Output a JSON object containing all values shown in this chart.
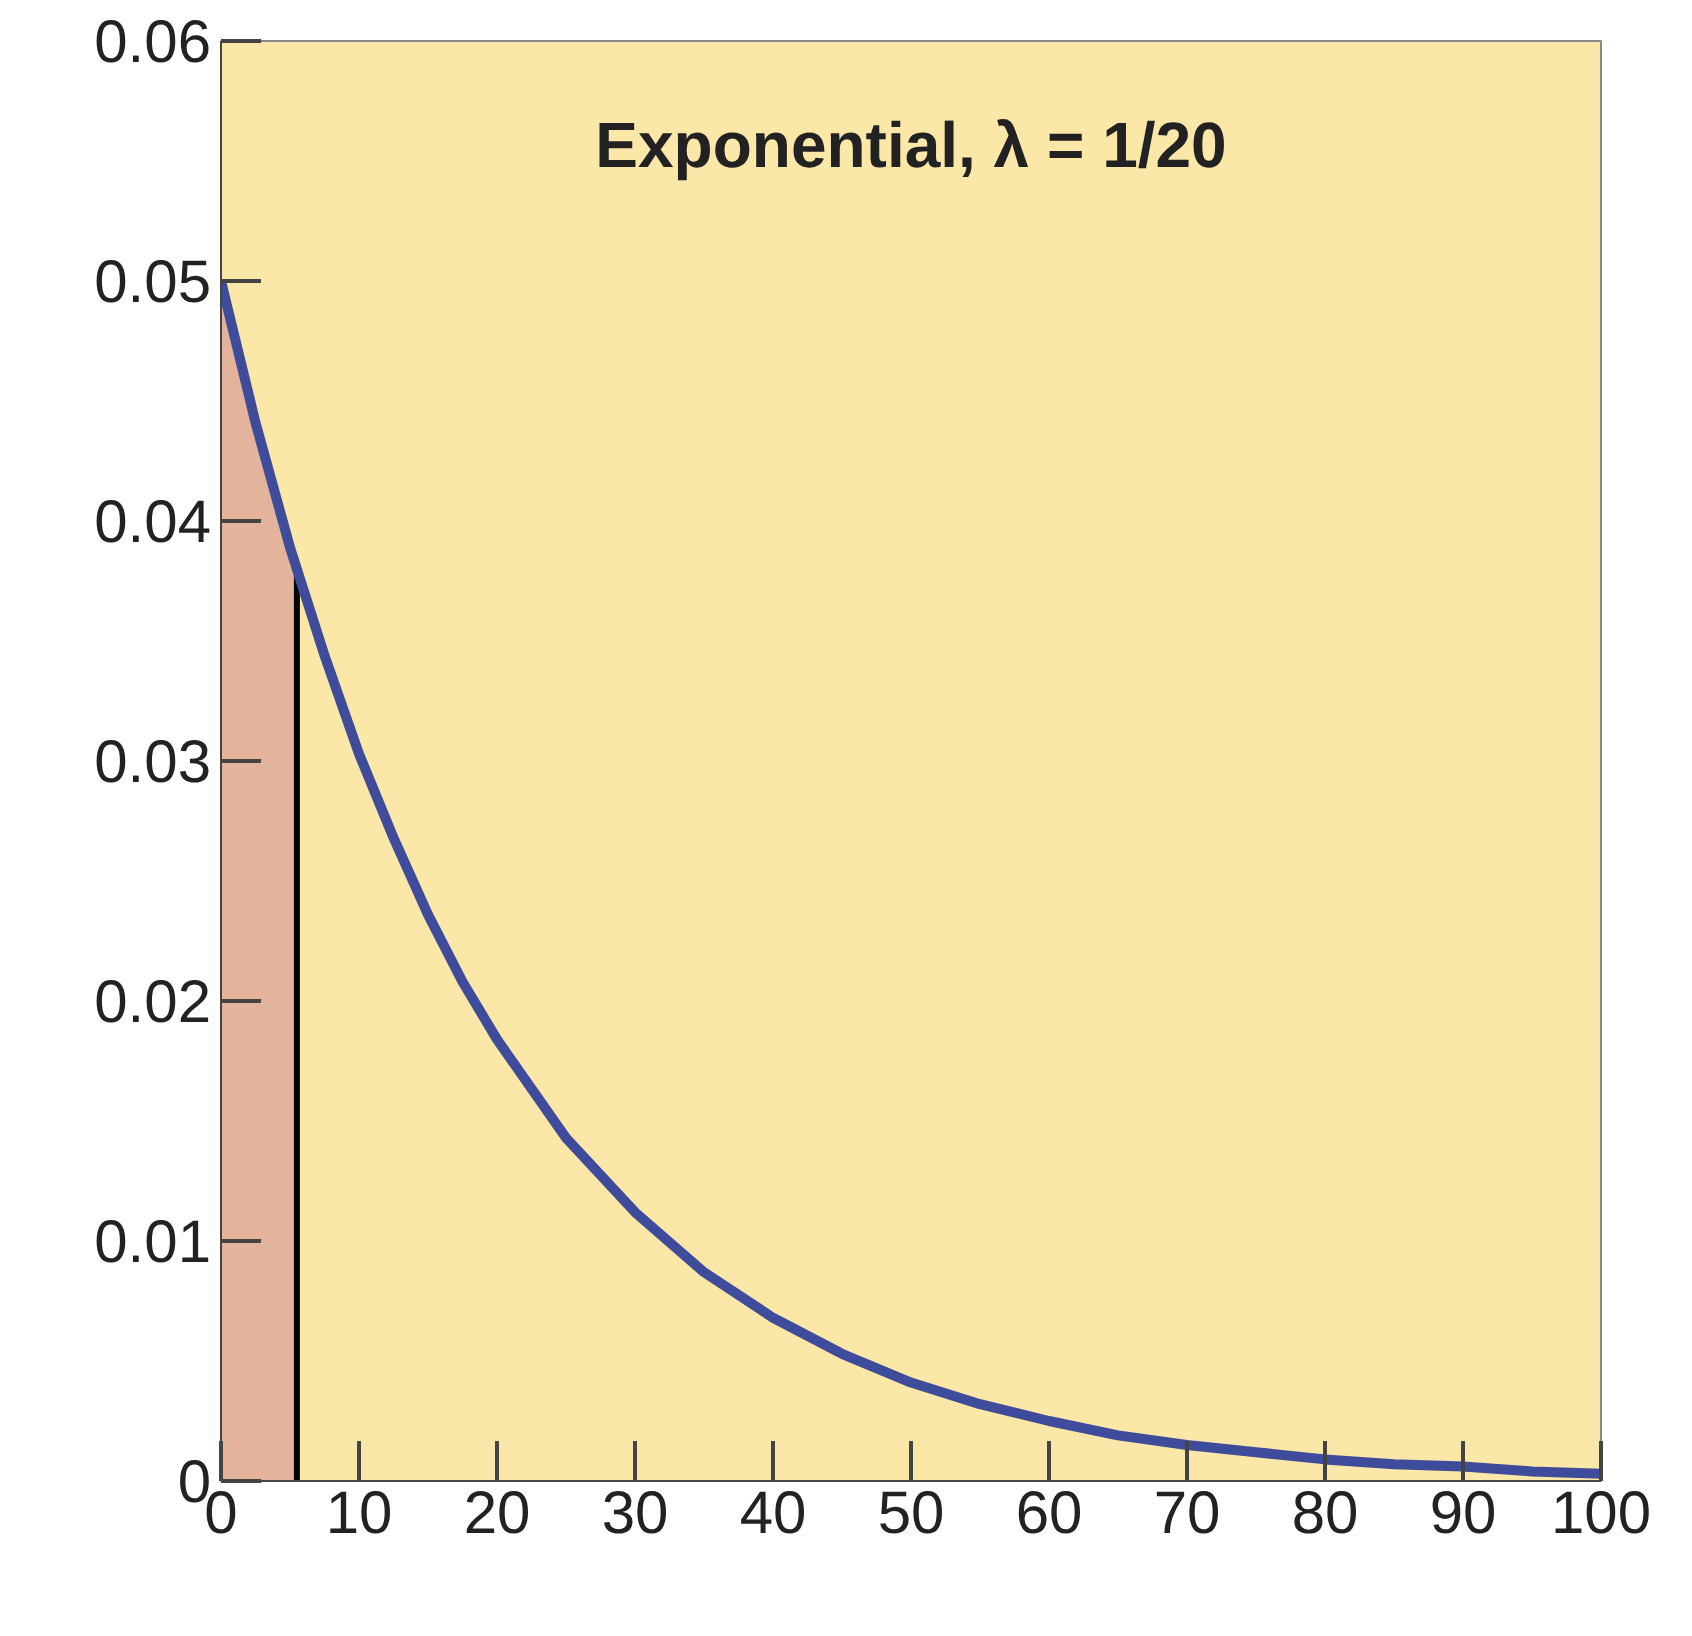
{
  "chart_data": {
    "type": "line",
    "annotations": [
      "Exponential, λ = 1/20"
    ],
    "xlim": [
      0,
      100
    ],
    "ylim": [
      0,
      0.06
    ],
    "xticks": [
      0,
      10,
      20,
      30,
      40,
      50,
      60,
      70,
      80,
      90,
      100
    ],
    "yticks": [
      0,
      0.01,
      0.02,
      0.03,
      0.04,
      0.05,
      0.06
    ],
    "grid": false,
    "series": [
      {
        "type": "area",
        "color": "#e3b49b",
        "x": [
          0,
          1,
          2,
          3,
          4,
          5,
          5.5
        ],
        "values": [
          0.05,
          0.0476,
          0.0452,
          0.043,
          0.0409,
          0.0389,
          0.0379
        ]
      },
      {
        "color": "#000000",
        "x": [
          5.5,
          5.5
        ],
        "values": [
          0,
          0.0379
        ]
      },
      {
        "color": "#3f4c9b",
        "x": [
          0,
          2.5,
          5,
          7.5,
          10,
          12.5,
          15,
          17.5,
          20,
          25,
          30,
          35,
          40,
          45,
          50,
          55,
          60,
          65,
          70,
          75,
          80,
          85,
          90,
          95,
          100
        ],
        "values": [
          0.05,
          0.0441,
          0.0389,
          0.0344,
          0.0303,
          0.0268,
          0.0236,
          0.0208,
          0.0184,
          0.0143,
          0.0112,
          0.0087,
          0.0068,
          0.0053,
          0.0041,
          0.0032,
          0.0025,
          0.0019,
          0.0015,
          0.0012,
          0.0009,
          0.0007,
          0.0006,
          0.0004,
          0.0003
        ]
      }
    ]
  }
}
